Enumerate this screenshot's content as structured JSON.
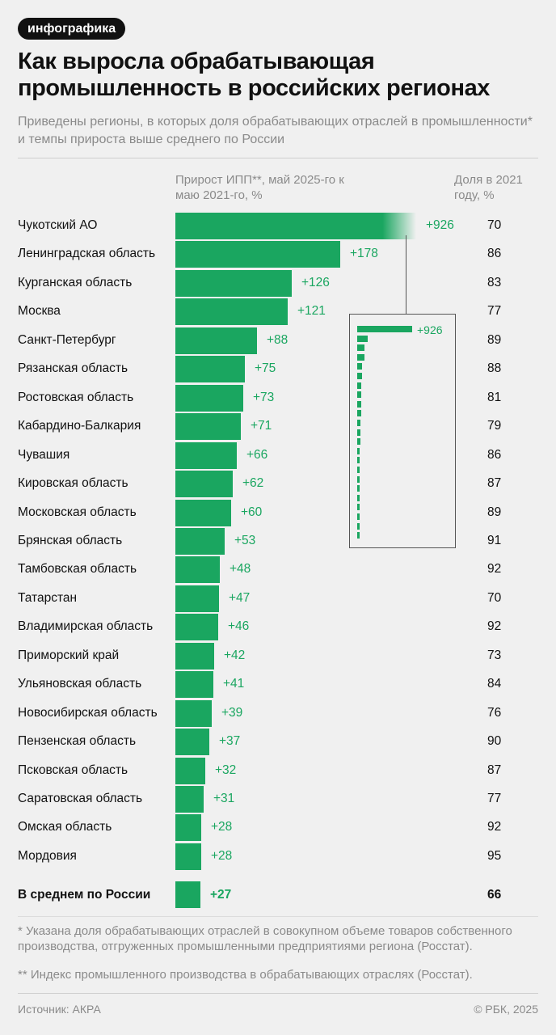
{
  "badge": "инфографика",
  "title": "Как выросла обрабатывающая промышленность в российских регионах",
  "subtitle": "Приведены регионы, в которых доля обрабатывающих отраслей в промышленности* и темпы прироста выше среднего по России",
  "colors": {
    "bar": "#1aa660",
    "text": "#111111",
    "muted": "#8a8a8a",
    "background": "#f0f0f0"
  },
  "chart_data": {
    "type": "bar",
    "orientation": "horizontal",
    "xlabel": "Прирост ИПП**, май 2025-го к маю 2021-го, %",
    "share_label": "Доля в 2021 году, %",
    "categories": [
      "Чукотский АО",
      "Ленинградская область",
      "Курганская область",
      "Москва",
      "Санкт-Петербург",
      "Рязанская область",
      "Ростовская область",
      "Кабардино-Балкария",
      "Чувашия",
      "Кировская область",
      "Московская область",
      "Брянская область",
      "Тамбовская область",
      "Татарстан",
      "Владимирская область",
      "Приморский край",
      "Ульяновская область",
      "Новосибирская область",
      "Пензенская область",
      "Псковская область",
      "Саратовская область",
      "Омская область",
      "Мордовия"
    ],
    "values": [
      926,
      178,
      126,
      121,
      88,
      75,
      73,
      71,
      66,
      62,
      60,
      53,
      48,
      47,
      46,
      42,
      41,
      39,
      37,
      32,
      31,
      28,
      28
    ],
    "value_labels": [
      "+926",
      "+178",
      "+126",
      "+121",
      "+88",
      "+75",
      "+73",
      "+71",
      "+66",
      "+62",
      "+60",
      "+53",
      "+48",
      "+47",
      "+46",
      "+42",
      "+41",
      "+39",
      "+37",
      "+32",
      "+31",
      "+28",
      "+28"
    ],
    "shares": [
      70,
      86,
      83,
      77,
      89,
      88,
      81,
      79,
      86,
      87,
      89,
      91,
      92,
      70,
      92,
      73,
      84,
      76,
      90,
      87,
      77,
      92,
      95
    ],
    "average": {
      "label": "В среднем по России",
      "value": 27,
      "value_label": "+27",
      "share": 66
    },
    "truncated_first_bar": true,
    "inset_label": "+926"
  },
  "footnotes": [
    "* Указана доля обрабатывающих отраслей в совокупном объеме товаров собственного производства, отгруженных промышленными предприятиями региона (Росстат).",
    "** Индекс промышленного производства в обрабатывающих отраслях (Росстат)."
  ],
  "source": "Источник: АКРА",
  "copyright": "© РБК, 2025"
}
